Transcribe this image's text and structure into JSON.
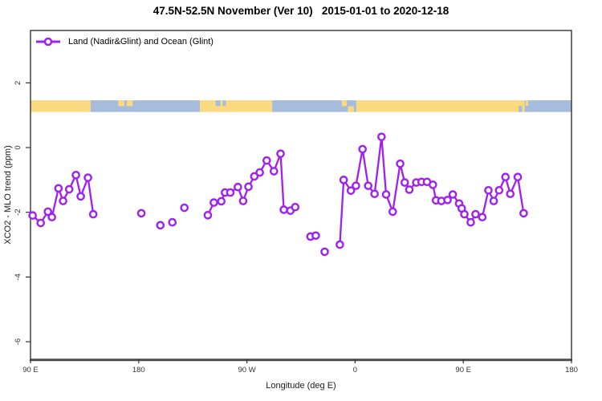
{
  "header": {
    "title": "47.5N-52.5N November (Ver 10)   2015-01-01 to 2020-12-18"
  },
  "legend": {
    "label": "Land (Nadir&Glint) and Ocean (Glint)"
  },
  "colors": {
    "series": "#A020F0",
    "marker_fill": "#ffffff",
    "land": "#FBD97E",
    "ocean": "#A6BCDD",
    "axis": "#333333",
    "tick_text": "#333333"
  },
  "chart_data": {
    "type": "line",
    "title": "47.5N-52.5N November (Ver 10)   2015-01-01 to 2020-12-18",
    "xlabel": "Longitude (deg E)",
    "ylabel": "XCO2 - MLO trend (ppm)",
    "xlim": [
      90,
      540
    ],
    "ylim": [
      -6.55,
      3.6
    ],
    "grid": false,
    "legend_position": "top-left",
    "xticks": [
      {
        "value": 90,
        "label": "90 E"
      },
      {
        "value": 180,
        "label": "180"
      },
      {
        "value": 270,
        "label": "90 W"
      },
      {
        "value": 360,
        "label": "0"
      },
      {
        "value": 450,
        "label": "90 E"
      },
      {
        "value": 540,
        "label": "180"
      }
    ],
    "yticks": [
      {
        "value": 2,
        "label": "2"
      },
      {
        "value": 0,
        "label": "0"
      },
      {
        "value": -2,
        "label": "-2"
      },
      {
        "value": -4,
        "label": "-4"
      },
      {
        "value": -6,
        "label": "-6"
      }
    ],
    "surface_band": {
      "description": "land/ocean strip at ~1.1-1.45 ppm",
      "y_range_ppm": [
        1.1,
        1.46
      ],
      "segments": [
        {
          "from": 90,
          "to": 140,
          "type": "land"
        },
        {
          "from": 140,
          "to": 231,
          "type": "ocean"
        },
        {
          "from": 231,
          "to": 291,
          "type": "land"
        },
        {
          "from": 291,
          "to": 361,
          "type": "ocean"
        },
        {
          "from": 361,
          "to": 501,
          "type": "land"
        },
        {
          "from": 501,
          "to": 540,
          "type": "ocean"
        }
      ],
      "speckles": [
        {
          "from": 141,
          "to": 143,
          "pos": "top",
          "type": "ocean"
        },
        {
          "from": 143.5,
          "to": 146.5,
          "pos": "bottom",
          "type": "ocean"
        },
        {
          "from": 163,
          "to": 168,
          "pos": "top",
          "type": "land"
        },
        {
          "from": 170,
          "to": 175,
          "pos": "top",
          "type": "land"
        },
        {
          "from": 244,
          "to": 248,
          "pos": "top",
          "type": "ocean"
        },
        {
          "from": 250,
          "to": 252.5,
          "pos": "top",
          "type": "ocean"
        },
        {
          "from": 349,
          "to": 353,
          "pos": "top",
          "type": "land"
        },
        {
          "from": 354,
          "to": 359,
          "pos": "bottom",
          "type": "land"
        },
        {
          "from": 496,
          "to": 499,
          "pos": "bottom",
          "type": "ocean"
        },
        {
          "from": 502,
          "to": 504,
          "pos": "top",
          "type": "land"
        }
      ]
    },
    "series": [
      {
        "name": "Land (Nadir&Glint) and Ocean (Glint)",
        "color": "#A020F0",
        "marker": "open-circle",
        "groups": [
          [
            [
              91.8,
              -2.1
            ],
            [
              98.5,
              -2.33
            ],
            [
              104.5,
              -1.98
            ],
            [
              107.8,
              -2.15
            ],
            [
              113.3,
              -1.26
            ],
            [
              117.1,
              -1.65
            ],
            [
              122.2,
              -1.29
            ],
            [
              127.8,
              -0.85
            ],
            [
              131.8,
              -1.51
            ],
            [
              137.8,
              -0.93
            ],
            [
              142.2,
              -2.06
            ]
          ],
          [
            [
              182.2,
              -2.03
            ]
          ],
          [
            [
              198,
              -2.4
            ]
          ],
          [
            [
              208,
              -2.31
            ]
          ],
          [
            [
              218,
              -1.86
            ]
          ],
          [
            [
              237.5,
              -2.09
            ],
            [
              242.5,
              -1.7
            ],
            [
              248.7,
              -1.66
            ],
            [
              251.8,
              -1.39
            ],
            [
              256.2,
              -1.39
            ],
            [
              262.5,
              -1.22
            ],
            [
              266.9,
              -1.65
            ],
            [
              271.3,
              -1.21
            ],
            [
              276.2,
              -0.89
            ],
            [
              280.7,
              -0.77
            ],
            [
              286.5,
              -0.4
            ],
            [
              292.5,
              -0.73
            ],
            [
              298,
              -0.19
            ],
            [
              300.7,
              -1.92
            ],
            [
              306.2,
              -1.95
            ],
            [
              310.2,
              -1.84
            ]
          ],
          [
            [
              322.9,
              -2.75
            ],
            [
              327.3,
              -2.72
            ]
          ],
          [
            [
              334.7,
              -3.22
            ]
          ],
          [
            [
              347.3,
              -3.0
            ],
            [
              350.5,
              -1.0
            ],
            [
              356.5,
              -1.33
            ],
            [
              360.7,
              -1.18
            ],
            [
              366.2,
              -0.05
            ],
            [
              370.9,
              -1.18
            ],
            [
              376.2,
              -1.43
            ],
            [
              382,
              0.33
            ],
            [
              385.8,
              -1.45
            ],
            [
              391.3,
              -1.98
            ],
            [
              397.5,
              -0.5
            ],
            [
              401.3,
              -1.08
            ],
            [
              405.1,
              -1.3
            ],
            [
              410.9,
              -1.08
            ],
            [
              415.3,
              -1.06
            ],
            [
              419.8,
              -1.06
            ],
            [
              424.7,
              -1.15
            ],
            [
              427.3,
              -1.63
            ],
            [
              431.8,
              -1.65
            ],
            [
              436.9,
              -1.62
            ],
            [
              441.3,
              -1.45
            ],
            [
              446.5,
              -1.73
            ],
            [
              448.7,
              -1.88
            ],
            [
              450.9,
              -2.06
            ],
            [
              456.2,
              -2.31
            ],
            [
              460.2,
              -2.06
            ],
            [
              465.8,
              -2.15
            ],
            [
              470.9,
              -1.32
            ],
            [
              475.3,
              -1.65
            ],
            [
              479.8,
              -1.32
            ],
            [
              485.1,
              -0.91
            ],
            [
              489.1,
              -1.43
            ],
            [
              495.3,
              -0.91
            ],
            [
              500.2,
              -2.03
            ]
          ]
        ]
      }
    ]
  }
}
